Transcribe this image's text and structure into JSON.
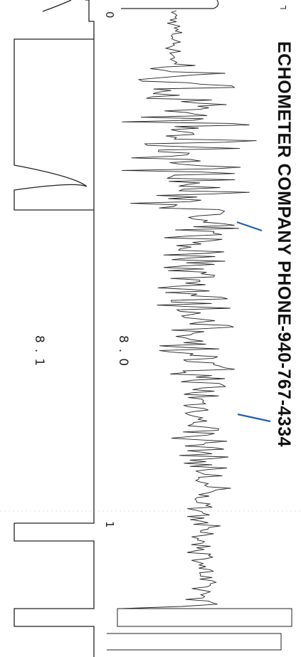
{
  "strip": {
    "header": "ECHOMETER COMPANY PHONE-940-767-4334",
    "scale_left": "8.0",
    "scale_right": "8.1",
    "marker_top": "0",
    "marker_bottom": "1",
    "corner_mark": "┐",
    "colors": {
      "ink": "#222222",
      "annotation": "#1f5fb0",
      "paper": "#ffffff"
    }
  }
}
